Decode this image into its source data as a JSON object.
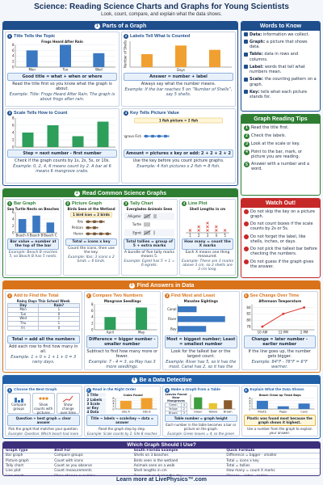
{
  "header": {
    "title": "Science: Reading Science Charts and Graphs for Young Scientists",
    "subtitle": "Look, count, compare, and explain what the data shows."
  },
  "sections": [
    {
      "number": "1",
      "heading": "Parts of a Graph",
      "panels": [
        {
          "number": "1",
          "heading": "Title Tells the Topic",
          "chart": {
            "type": "bar",
            "title": "Frogs Heard After Rain",
            "categories": [
              "Mon",
              "Tue",
              "Wed"
            ],
            "values": [
              6,
              8,
              5
            ],
            "color": "#3b78c2",
            "ylim": [
              0,
              8
            ],
            "yticks": [
              0,
              2,
              4,
              6,
              8
            ]
          },
          "formula": "Good title = what + when or where",
          "note": "Read the title first so you know what the graph is about.",
          "example": "Example: Title: Frogs Heard After Rain. The graph is about frogs after rain."
        },
        {
          "number": "2",
          "heading": "Labels Tell What Is Counted",
          "chart": {
            "type": "bar",
            "categories": [
              null,
              null,
              null
            ],
            "values": [
              3,
              5,
              4
            ],
            "color": "#f0a030",
            "ylim": [
              0,
              6
            ],
            "y_label": "Number of Shells",
            "x_label": "Days"
          },
          "formula": "Answer = number + label",
          "note": "Always say what the number means.",
          "example": "Example: If the bar reaches 5 on “Number of Shells”, say 5 shells."
        },
        {
          "number": "3",
          "heading": "Scale Tells How to Count",
          "chart": {
            "type": "bar",
            "categories": [
              null,
              null,
              null,
              null
            ],
            "values": [
              4,
              6,
              3,
              7
            ],
            "color": "#2e9e5b",
            "ylim": [
              0,
              8
            ],
            "yticks": [
              0,
              2,
              4,
              6,
              8
            ]
          },
          "formula": "Step = next number - first number",
          "note": "Check if the graph counts by 1s, 2s, 5s, or 10s.",
          "example": "Example: 0, 2, 4, 6 means count by 2. A bar at 6 means 6 mangrove crabs."
        },
        {
          "number": "4",
          "heading": "Key Tells Picture Value",
          "chart": {
            "type": "picture",
            "key": "1 fish picture = 2 fish",
            "categories": [
              "Mangrove Fish"
            ],
            "values": [
              4
            ],
            "color": "#3b78c2"
          },
          "formula": "Amount = pictures x key or add: 2 + 2 + 2 + 2",
          "note": "Use the key before you count picture graphs.",
          "example": "Example: 4 fish pictures x 2 fish = 8 fish."
        }
      ]
    },
    {
      "number": "2",
      "heading": "Read Common Science Graphs",
      "panels": [
        {
          "number": "1",
          "heading": "Bar Graph",
          "chart": {
            "type": "bar",
            "title": "Sea Turtle Nests on Beaches",
            "categories": [
              "Beach A",
              "Beach B",
              "Beach C"
            ],
            "values": [
              4,
              5,
              3
            ],
            "color": "#3b78c2",
            "ylim": [
              0,
              6
            ],
            "yticks": [
              0,
              2,
              4,
              6
            ]
          },
          "formula": "Bar value = number at the top of the bar",
          "example": "Example: Beach B reaches 5, so Beach B has 5 nests."
        },
        {
          "number": "2",
          "heading": "Picture Graph",
          "chart": {
            "type": "picture",
            "title": "Birds Seen at the Wetland",
            "key": "1 bird icon = 2 birds",
            "categories": [
              "Ibis",
              "Pelican",
              "Heron"
            ],
            "values": [
              3,
              2,
              4
            ],
            "color": "#7a5a3a"
          },
          "formula": "Total = icons x key",
          "note": "Count the icons, then use the key.",
          "example": "Example: Ibis: 3 icons x 2 birds = 6 birds."
        },
        {
          "number": "3",
          "heading": "Tally Chart",
          "chart": {
            "type": "tally",
            "title": "Everglades Animals Seen",
            "categories": [
              "Alligator",
              "Turtle",
              "Egret"
            ],
            "values": [
              7,
              4,
              6
            ],
            "color": "#333333"
          },
          "formula": "Total tallies = group of 5 + extra marks",
          "note": "A bundle of five tally marks means 5.",
          "example": "Example: Egret has 5 + 1 = 6 egrets."
        },
        {
          "number": "4",
          "heading": "Line Plot",
          "chart": {
            "type": "lineplot",
            "title": "Shell Lengths in cm",
            "x": [
              1,
              2,
              3,
              4,
              5
            ],
            "values": [
              1,
              2,
              3,
              2,
              1
            ],
            "xlim": [
              0.5,
              5.5
            ],
            "xticks": [
              1,
              2,
              3,
              4,
              5
            ],
            "color": "#d9342b"
          },
          "formula": "How many = count the X marks",
          "note": "Each X means one thing measured.",
          "example": "Example: There are 3 marks above 3 cm, so 3 shells are 3 cm long."
        }
      ]
    },
    {
      "number": "3",
      "heading": "Find Answers in Data",
      "panels": [
        {
          "number": "1",
          "heading": "Add to Find the Total",
          "table": {
            "title": "Rainy Days This School Week",
            "header": [
              "Day",
              "Rain?"
            ],
            "rows": [
              [
                "Mon",
                1
              ],
              [
                "Tue",
                0
              ],
              [
                "Wed",
                1
              ],
              [
                "Thu",
                1
              ],
              [
                "Fri",
                0
              ]
            ]
          },
          "formula": "Total = add all the numbers",
          "note": "Add each row to find how many in all.",
          "example": "Example: 1 + 0 + 1 + 1 + 0 = 3 rainy days."
        },
        {
          "number": "2",
          "heading": "Compare Two Numbers",
          "chart": {
            "type": "bar",
            "title": "Mangrove Seedlings",
            "categories": [
              "April",
              "May"
            ],
            "values": [
              4,
              7
            ],
            "color": "#2e9e5b",
            "ylim": [
              0,
              8
            ],
            "yticks": [
              0,
              2,
              4,
              6,
              8
            ]
          },
          "formula": "Difference = bigger number - smaller number",
          "note": "Subtract to find how many more or fewer.",
          "example": "Example: 7 - 4 = 3, so May has 3 more seedlings."
        },
        {
          "number": "3",
          "heading": "Find Most and Least",
          "chart": {
            "type": "hbar",
            "title": "Manatee Sightings",
            "categories": [
              "Canal",
              "River",
              "Bay"
            ],
            "values": [
              2,
              5,
              3
            ],
            "color": "#3b78c2",
            "xlim": [
              0,
              6
            ]
          },
          "formula": "Most = biggest number; Least = smallest number",
          "note": "Look for the tallest bar or the largest count.",
          "example": "Example: River has 5, so it has the most. Canal has 2, so it has the least."
        },
        {
          "number": "4",
          "heading": "See Change Over Time",
          "chart": {
            "type": "line",
            "title": "Afternoon Temperature",
            "categories": [
              "10 AM",
              "12 PM",
              "2 PM"
            ],
            "values": [
              78,
              82,
              84
            ],
            "color": "#d9342b",
            "ylim": [
              77,
              85
            ],
            "yticks": [
              78,
              80,
              82,
              84
            ]
          },
          "formula": "Change = later number - earlier number",
          "note": "If the line goes up, the number gets bigger.",
          "example": "Example: 84°F - 78°F = 6°F warmer."
        }
      ]
    },
    {
      "number": "4",
      "heading": "Be a Data Detective",
      "panels": [
        {
          "number": "1",
          "heading": "Choose the Best Graph",
          "choices": [
            "Compare groups",
            "Show counts with pictures",
            "Show change over time"
          ],
          "formula": "Question + best graph = clear answer",
          "note": "Pick the graph that matches your question.",
          "example": "Example: Question: Which beach had more shells? Use a bar graph."
        },
        {
          "number": "2",
          "heading": "Read in the Right Order",
          "steps": [
            "1 Title",
            "2 Labels",
            "3 Scale or Key",
            "4 Data"
          ],
          "chart": {
            "type": "bar",
            "title": "Crabs Found",
            "categories": [
              "Site A",
              "Site B"
            ],
            "values": [
              6,
              8
            ],
            "color": "#f0a030",
            "ylim": [
              0,
              8
            ],
            "yticks": [
              0,
              2,
              4,
              6,
              8
            ]
          },
          "formula": "Title → labels → scale/key → data = answer",
          "note": "Read the graph step by step.",
          "example": "Example: Scale counts by 2. Site B reaches 8, so 8 crabs were found."
        },
        {
          "number": "3",
          "heading": "Make a Graph from a Table",
          "table": {
            "title": "Leaves Found Near Mangroves",
            "rows": [
              [
                "Green",
                4
              ],
              [
                "Yellow",
                2
              ],
              [
                "Brown",
                3
              ]
            ]
          },
          "chart": {
            "type": "bar",
            "categories": [
              "Green",
              "Yellow",
              "Brown"
            ],
            "values": [
              4,
              2,
              3
            ],
            "colors": [
              "#3f9e3f",
              "#e8c530",
              "#8a5a2b"
            ],
            "ylim": [
              0,
              5
            ]
          },
          "formula": "Table number = graph height",
          "note": "Each number in the table becomes a bar or picture on the graph.",
          "example": "Example: Green leaves = 4, so the green bar goes up to 4."
        },
        {
          "number": "4",
          "heading": "Explain What the Data Shows",
          "chart": {
            "type": "bar",
            "title": "Beach Clean-up Trash Bags",
            "categories": [
              "Plastic",
              "Paper",
              "Cans"
            ],
            "values": [
              6,
              2,
              4
            ],
            "color": "#3b78c2",
            "ylim": [
              0,
              8
            ],
            "yticks": [
              0,
              2,
              4,
              6,
              8
            ]
          },
          "callout": "Plastic was found most because the graph shows it highest.",
          "note": "Use a number from the graph to explain your answer.",
          "example": "Example: Plastic was found most because the graph shows 6 bags."
        }
      ]
    }
  ],
  "words_to_know": {
    "heading": "Words to Know",
    "items": [
      {
        "term": "Data:",
        "definition": "information we collect."
      },
      {
        "term": "Graph:",
        "definition": "a picture that shows data."
      },
      {
        "term": "Table:",
        "definition": "data in rows and columns."
      },
      {
        "term": "Label:",
        "definition": "words that tell what numbers mean."
      },
      {
        "term": "Scale:",
        "definition": "the counting pattern on a graph."
      },
      {
        "term": "Key:",
        "definition": "tells what each picture stands for."
      }
    ]
  },
  "tips": {
    "heading": "Graph Reading Tips",
    "items": [
      {
        "number": "1",
        "text": "Read the title first."
      },
      {
        "number": "2",
        "text": "Check the labels."
      },
      {
        "number": "3",
        "text": "Look at the scale or key."
      },
      {
        "number": "4",
        "text": "Point to the bar, mark, or picture you are reading."
      },
      {
        "number": "5",
        "text": "Answer with a number and a word."
      }
    ]
  },
  "watch_out": {
    "heading": "Watch Out!",
    "items": [
      "Do not skip the key on a picture graph.",
      "Do not count boxes if the scale counts by 2s or 5s.",
      "Do not forget the label, like shells, inches, or days.",
      "Do not pick the tallest bar before checking the numbers.",
      "Do not guess if the graph gives the answer."
    ]
  },
  "guide_table": {
    "heading": "Which Graph Should I Use?",
    "columns": [
      "Graph Type",
      "Best For",
      "South Florida Example",
      "Quick Formula"
    ],
    "rows": [
      [
        "Bar graph",
        "Compare groups",
        "Shells on 3 beaches",
        "Difference = bigger - smaller"
      ],
      [
        "Picture graph",
        "Count with icons",
        "Birds seen in the wetland",
        "Total = icons x key"
      ],
      [
        "Tally chart",
        "Count as you observe",
        "Animals seen on a walk",
        "Total = tallies"
      ],
      [
        "Line plot",
        "Count measurements",
        "Shell lengths in cm",
        "How many = count X marks"
      ],
      [
        "Line graph",
        "Show change over time",
        "Temperature during the day",
        "Change = later - earlier"
      ]
    ]
  },
  "footer": "Learn more at LivePhysics™.com"
}
